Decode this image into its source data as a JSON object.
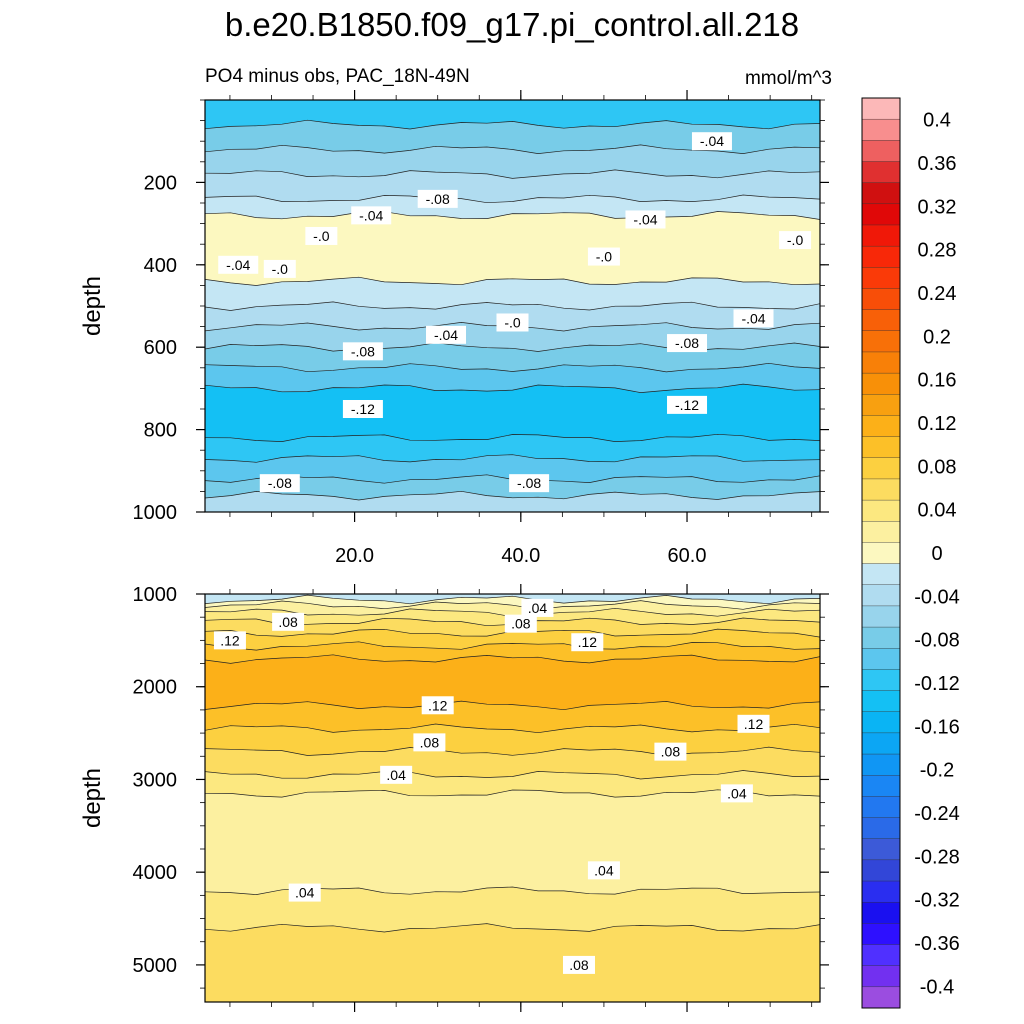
{
  "chart_data": {
    "type": "contour",
    "title": "b.e20.B1850.f09_g17.pi_control.all.218",
    "subtitle": "PO4 minus obs, PAC_18N-49N",
    "units": "mmol/m^3",
    "xlim": [
      2,
      76
    ],
    "x_ticks": [
      20,
      40,
      60
    ],
    "x_tick_labels": [
      "20.0",
      "40.0",
      "60.0"
    ],
    "colorbar": {
      "levels": [
        -0.42,
        -0.4,
        -0.38,
        -0.36,
        -0.34,
        -0.32,
        -0.3,
        -0.28,
        -0.26,
        -0.24,
        -0.22,
        -0.2,
        -0.18,
        -0.16,
        -0.14,
        -0.12,
        -0.1,
        -0.08,
        -0.06,
        -0.04,
        -0.02,
        0.0,
        0.02,
        0.04,
        0.06,
        0.08,
        0.1,
        0.12,
        0.14,
        0.16,
        0.18,
        0.2,
        0.22,
        0.24,
        0.26,
        0.28,
        0.3,
        0.32,
        0.34,
        0.36,
        0.38,
        0.4,
        0.42
      ],
      "colors": [
        "#9b4de0",
        "#7230f0",
        "#5030ff",
        "#2e10ff",
        "#1a10f0",
        "#2a2ef0",
        "#3246d8",
        "#3c5ad8",
        "#2a6ae8",
        "#2278f0",
        "#1a86f4",
        "#1096f4",
        "#0ca6f4",
        "#0ab4f4",
        "#14c0f4",
        "#2ec6f4",
        "#5cc6ee",
        "#78cce8",
        "#98d4ec",
        "#b0dcf0",
        "#c4e6f4",
        "#fcf8c0",
        "#fcf0a0",
        "#fce880",
        "#fcdc60",
        "#fcd040",
        "#fcc028",
        "#fcb018",
        "#f8a010",
        "#f89008",
        "#f88008",
        "#f87008",
        "#f86008",
        "#f84e08",
        "#fa3a08",
        "#f82808",
        "#f01808",
        "#e00808",
        "#d01010",
        "#e03030",
        "#ee6060",
        "#f88e8e",
        "#fcb8b8"
      ],
      "tick_values": [
        0.4,
        0.36,
        0.32,
        0.28,
        0.24,
        0.2,
        0.16,
        0.12,
        0.08,
        0.04,
        0,
        -0.04,
        -0.08,
        -0.12,
        -0.16,
        -0.2,
        -0.24,
        -0.28,
        -0.32,
        -0.36,
        -0.4
      ],
      "tick_labels": [
        "0.4",
        "0.36",
        "0.32",
        "0.28",
        "0.24",
        "0.2",
        "0.16",
        "0.12",
        "0.08",
        "0.04",
        "0",
        "-0.04",
        "-0.08",
        "-0.12",
        "-0.16",
        "-0.2",
        "-0.24",
        "-0.28",
        "-0.32",
        "-0.36",
        "-0.4"
      ]
    },
    "panels": [
      {
        "id": "upper",
        "ylabel": "depth",
        "ylim": [
          0,
          1000
        ],
        "y_inverted": true,
        "y_ticks": [
          200,
          400,
          600,
          800,
          1000
        ],
        "y_tick_labels": [
          "200",
          "400",
          "600",
          "800",
          "1000"
        ],
        "bands": [
          {
            "top": 0,
            "bottom": 60,
            "value": -0.12
          },
          {
            "top": 60,
            "bottom": 120,
            "value": -0.08
          },
          {
            "top": 120,
            "bottom": 180,
            "value": -0.06
          },
          {
            "top": 180,
            "bottom": 240,
            "value": -0.04
          },
          {
            "top": 240,
            "bottom": 280,
            "value": -0.02
          },
          {
            "top": 280,
            "bottom": 440,
            "value": 0.01
          },
          {
            "top": 440,
            "bottom": 500,
            "value": -0.02
          },
          {
            "top": 500,
            "bottom": 550,
            "value": -0.04
          },
          {
            "top": 550,
            "bottom": 600,
            "value": -0.06
          },
          {
            "top": 600,
            "bottom": 650,
            "value": -0.08
          },
          {
            "top": 650,
            "bottom": 700,
            "value": -0.1
          },
          {
            "top": 700,
            "bottom": 820,
            "value": -0.13
          },
          {
            "top": 820,
            "bottom": 870,
            "value": -0.11
          },
          {
            "top": 870,
            "bottom": 920,
            "value": -0.09
          },
          {
            "top": 920,
            "bottom": 960,
            "value": -0.07
          },
          {
            "top": 960,
            "bottom": 1000,
            "value": -0.04
          }
        ],
        "contour_labels": [
          {
            "text": "-.04",
            "x": 63,
            "depth": 100
          },
          {
            "text": "-.08",
            "x": 30,
            "depth": 240
          },
          {
            "text": "-.04",
            "x": 22,
            "depth": 280
          },
          {
            "text": "-.0",
            "x": 16,
            "depth": 330
          },
          {
            "text": "-.04",
            "x": 55,
            "depth": 290
          },
          {
            "text": "-.0",
            "x": 73,
            "depth": 340
          },
          {
            "text": "-.04",
            "x": 6,
            "depth": 400
          },
          {
            "text": "-.0",
            "x": 11,
            "depth": 410
          },
          {
            "text": "-.0",
            "x": 50,
            "depth": 380
          },
          {
            "text": "-.0",
            "x": 39,
            "depth": 540
          },
          {
            "text": "-.04",
            "x": 31,
            "depth": 570
          },
          {
            "text": "-.04",
            "x": 68,
            "depth": 530
          },
          {
            "text": "-.08",
            "x": 21,
            "depth": 610
          },
          {
            "text": "-.08",
            "x": 60,
            "depth": 590
          },
          {
            "text": "-.12",
            "x": 21,
            "depth": 750
          },
          {
            "text": "-.12",
            "x": 60,
            "depth": 740
          },
          {
            "text": "-.08",
            "x": 11,
            "depth": 930
          },
          {
            "text": "-.08",
            "x": 41,
            "depth": 930
          }
        ]
      },
      {
        "id": "lower",
        "ylabel": "depth",
        "ylim": [
          1000,
          5400
        ],
        "y_inverted": true,
        "y_ticks": [
          1000,
          2000,
          3000,
          4000,
          5000
        ],
        "y_tick_labels": [
          "1000",
          "2000",
          "3000",
          "4000",
          "5000"
        ],
        "bands": [
          {
            "top": 1000,
            "bottom": 1060,
            "value": -0.02
          },
          {
            "top": 1060,
            "bottom": 1120,
            "value": 0.01
          },
          {
            "top": 1120,
            "bottom": 1200,
            "value": 0.03
          },
          {
            "top": 1200,
            "bottom": 1300,
            "value": 0.05
          },
          {
            "top": 1300,
            "bottom": 1420,
            "value": 0.07
          },
          {
            "top": 1420,
            "bottom": 1560,
            "value": 0.09
          },
          {
            "top": 1560,
            "bottom": 1700,
            "value": 0.11
          },
          {
            "top": 1700,
            "bottom": 2200,
            "value": 0.13
          },
          {
            "top": 2200,
            "bottom": 2450,
            "value": 0.11
          },
          {
            "top": 2450,
            "bottom": 2700,
            "value": 0.09
          },
          {
            "top": 2700,
            "bottom": 2950,
            "value": 0.07
          },
          {
            "top": 2950,
            "bottom": 3150,
            "value": 0.05
          },
          {
            "top": 3150,
            "bottom": 4200,
            "value": 0.03
          },
          {
            "top": 4200,
            "bottom": 4600,
            "value": 0.05
          },
          {
            "top": 4600,
            "bottom": 5400,
            "value": 0.07
          }
        ],
        "contour_labels": [
          {
            "text": ".04",
            "x": 42,
            "depth": 1150
          },
          {
            "text": ".08",
            "x": 12,
            "depth": 1300
          },
          {
            "text": ".08",
            "x": 40,
            "depth": 1320
          },
          {
            "text": ".12",
            "x": 5,
            "depth": 1500
          },
          {
            "text": ".12",
            "x": 48,
            "depth": 1520
          },
          {
            "text": ".12",
            "x": 30,
            "depth": 2200
          },
          {
            "text": ".12",
            "x": 68,
            "depth": 2400
          },
          {
            "text": ".08",
            "x": 29,
            "depth": 2600
          },
          {
            "text": ".08",
            "x": 58,
            "depth": 2700
          },
          {
            "text": ".04",
            "x": 25,
            "depth": 2950
          },
          {
            "text": ".04",
            "x": 66,
            "depth": 3150
          },
          {
            "text": ".04",
            "x": 50,
            "depth": 3980
          },
          {
            "text": ".04",
            "x": 14,
            "depth": 4220
          },
          {
            "text": ".08",
            "x": 47,
            "depth": 5000
          }
        ]
      }
    ]
  }
}
